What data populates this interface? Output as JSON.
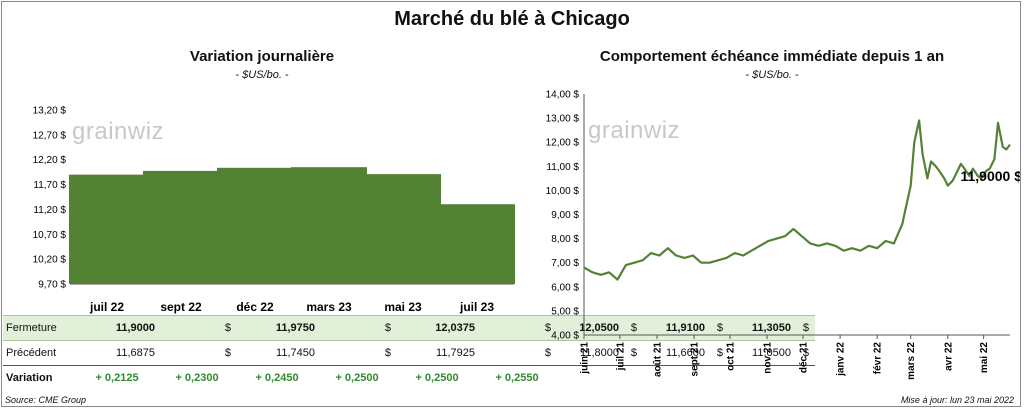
{
  "main_title": "Marché du blé à Chicago",
  "left_panel": {
    "title": "Variation journalière",
    "subtitle": "- $US/bo. -"
  },
  "right_panel": {
    "title": "Comportement échéance immédiate depuis 1 an",
    "subtitle": "- $US/bo. -"
  },
  "logo_text": "grainwiz",
  "table": {
    "rows": [
      {
        "label": "Fermeture",
        "values": [
          "11,9000",
          "11,9750",
          "12,0375",
          "12,0500",
          "11,9100",
          "11,3050"
        ],
        "currency": "$"
      },
      {
        "label": "Précédent",
        "values": [
          "11,6875",
          "11,7450",
          "11,7925",
          "11,8000",
          "11,6600",
          "11,0500"
        ],
        "currency": "$"
      },
      {
        "label": "Variation",
        "values": [
          "+ 0,2125",
          "+ 0,2300",
          "+ 0,2450",
          "+ 0,2500",
          "+ 0,2500",
          "+ 0,2550"
        ]
      }
    ]
  },
  "footer": {
    "source": "Source: CME Group",
    "updated": "Mise à jour: lun 23 mai 2022"
  },
  "colors": {
    "bar": "#548235",
    "line": "#548235",
    "accent_green": "#2e8b2e",
    "table_highlight": "#e2efd9"
  },
  "chart_data": [
    {
      "type": "bar",
      "categories": [
        "juil 22",
        "sept 22",
        "déc 22",
        "mars 23",
        "mai 23",
        "juil 23"
      ],
      "values": [
        11.9,
        11.975,
        12.0375,
        12.05,
        11.91,
        11.305
      ],
      "ylim": [
        9.7,
        13.2
      ],
      "yticks": [
        9.7,
        10.2,
        10.7,
        11.2,
        11.7,
        12.2,
        12.7,
        13.2
      ],
      "ytick_labels": [
        "9,70 $",
        "10,20 $",
        "10,70 $",
        "11,20 $",
        "11,70 $",
        "12,20 $",
        "12,70 $",
        "13,20 $"
      ],
      "grid": false
    },
    {
      "type": "line",
      "ylim": [
        4,
        14
      ],
      "yticks": [
        4,
        5,
        6,
        7,
        8,
        9,
        10,
        11,
        12,
        13,
        14
      ],
      "ytick_labels": [
        "4,00 $",
        "5,00 $",
        "6,00 $",
        "7,00 $",
        "8,00 $",
        "9,00 $",
        "10,00 $",
        "11,00 $",
        "12,00 $",
        "13,00 $",
        "14,00 $"
      ],
      "xticks": [
        "juin 21",
        "juil 21",
        "août 21",
        "sept 21",
        "oct 21",
        "nov 21",
        "déc 21",
        "janv 22",
        "févr 22",
        "mars 22",
        "avr 22",
        "mai 22"
      ],
      "x": [
        "2021-06-01",
        "2021-06-08",
        "2021-06-15",
        "2021-06-22",
        "2021-06-29",
        "2021-07-06",
        "2021-07-13",
        "2021-07-20",
        "2021-07-27",
        "2021-08-03",
        "2021-08-10",
        "2021-08-17",
        "2021-08-24",
        "2021-08-31",
        "2021-09-07",
        "2021-09-14",
        "2021-09-21",
        "2021-09-28",
        "2021-10-05",
        "2021-10-12",
        "2021-10-19",
        "2021-10-26",
        "2021-11-02",
        "2021-11-09",
        "2021-11-16",
        "2021-11-23",
        "2021-11-30",
        "2021-12-07",
        "2021-12-14",
        "2021-12-21",
        "2021-12-28",
        "2022-01-04",
        "2022-01-11",
        "2022-01-18",
        "2022-01-25",
        "2022-02-01",
        "2022-02-08",
        "2022-02-15",
        "2022-02-22",
        "2022-02-25",
        "2022-03-01",
        "2022-03-04",
        "2022-03-08",
        "2022-03-11",
        "2022-03-15",
        "2022-03-18",
        "2022-03-22",
        "2022-03-25",
        "2022-03-29",
        "2022-04-01",
        "2022-04-05",
        "2022-04-08",
        "2022-04-12",
        "2022-04-15",
        "2022-04-19",
        "2022-04-22",
        "2022-04-26",
        "2022-04-29",
        "2022-05-03",
        "2022-05-06",
        "2022-05-10",
        "2022-05-13",
        "2022-05-17",
        "2022-05-20",
        "2022-05-23"
      ],
      "values": [
        6.8,
        6.6,
        6.5,
        6.6,
        6.3,
        6.9,
        7.0,
        7.1,
        7.4,
        7.3,
        7.6,
        7.3,
        7.2,
        7.3,
        7.0,
        7.0,
        7.1,
        7.2,
        7.4,
        7.3,
        7.5,
        7.7,
        7.9,
        8.0,
        8.1,
        8.4,
        8.1,
        7.8,
        7.7,
        7.8,
        7.7,
        7.5,
        7.6,
        7.5,
        7.7,
        7.6,
        7.9,
        7.8,
        8.6,
        9.3,
        10.2,
        12.0,
        12.9,
        11.5,
        10.5,
        11.2,
        11.0,
        10.8,
        10.5,
        10.2,
        10.4,
        10.7,
        11.1,
        10.9,
        10.6,
        10.9,
        10.6,
        10.5,
        10.8,
        10.9,
        11.3,
        12.8,
        11.8,
        11.7,
        11.9
      ],
      "annotation": "11,9000 $",
      "grid": false
    }
  ]
}
